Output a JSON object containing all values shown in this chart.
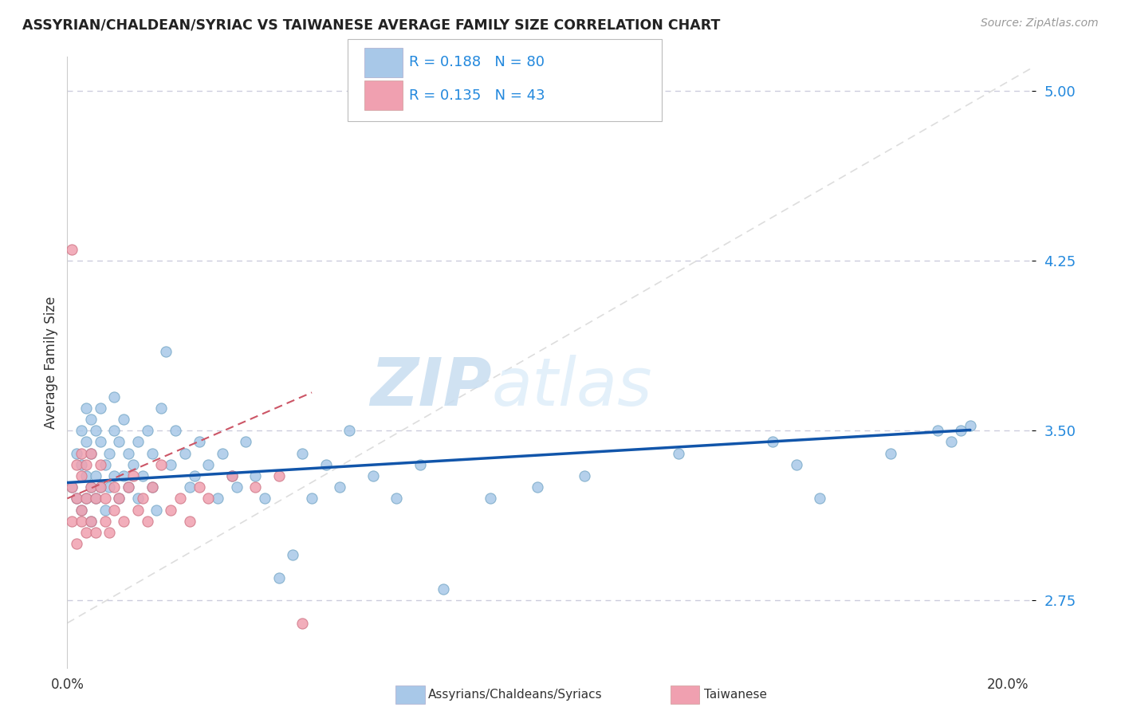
{
  "title": "ASSYRIAN/CHALDEAN/SYRIAC VS TAIWANESE AVERAGE FAMILY SIZE CORRELATION CHART",
  "source": "Source: ZipAtlas.com",
  "ylabel": "Average Family Size",
  "xlim": [
    0.0,
    0.205
  ],
  "ylim": [
    2.45,
    5.15
  ],
  "yticks": [
    2.75,
    3.5,
    4.25,
    5.0
  ],
  "xticks": [
    0.0,
    0.05,
    0.1,
    0.15,
    0.2
  ],
  "color_blue": "#a8c8e8",
  "color_blue_edge": "#7aaac8",
  "color_pink": "#f0a0b0",
  "color_pink_edge": "#d07888",
  "color_blue_text": "#2288dd",
  "color_line_blue": "#1155aa",
  "color_line_pink": "#cc5566",
  "watermark_color": "#ddeeff",
  "background_color": "#ffffff",
  "grid_color": "#ccccdd",
  "assyrians_x": [
    0.001,
    0.002,
    0.002,
    0.003,
    0.003,
    0.003,
    0.004,
    0.004,
    0.004,
    0.004,
    0.005,
    0.005,
    0.005,
    0.005,
    0.006,
    0.006,
    0.006,
    0.007,
    0.007,
    0.007,
    0.008,
    0.008,
    0.009,
    0.009,
    0.01,
    0.01,
    0.01,
    0.011,
    0.011,
    0.012,
    0.012,
    0.013,
    0.013,
    0.014,
    0.015,
    0.015,
    0.016,
    0.017,
    0.018,
    0.018,
    0.019,
    0.02,
    0.021,
    0.022,
    0.023,
    0.025,
    0.026,
    0.027,
    0.028,
    0.03,
    0.032,
    0.033,
    0.035,
    0.036,
    0.038,
    0.04,
    0.042,
    0.045,
    0.048,
    0.05,
    0.052,
    0.055,
    0.058,
    0.06,
    0.065,
    0.07,
    0.075,
    0.08,
    0.09,
    0.1,
    0.11,
    0.13,
    0.15,
    0.155,
    0.16,
    0.175,
    0.185,
    0.188,
    0.19,
    0.192
  ],
  "assyrians_y": [
    3.25,
    3.4,
    3.2,
    3.35,
    3.5,
    3.15,
    3.6,
    3.3,
    3.45,
    3.2,
    3.55,
    3.25,
    3.4,
    3.1,
    3.3,
    3.5,
    3.2,
    3.45,
    3.25,
    3.6,
    3.35,
    3.15,
    3.4,
    3.25,
    3.5,
    3.3,
    3.65,
    3.2,
    3.45,
    3.3,
    3.55,
    3.25,
    3.4,
    3.35,
    3.2,
    3.45,
    3.3,
    3.5,
    3.25,
    3.4,
    3.15,
    3.6,
    3.85,
    3.35,
    3.5,
    3.4,
    3.25,
    3.3,
    3.45,
    3.35,
    3.2,
    3.4,
    3.3,
    3.25,
    3.45,
    3.3,
    3.2,
    2.85,
    2.95,
    3.4,
    3.2,
    3.35,
    3.25,
    3.5,
    3.3,
    3.2,
    3.35,
    2.8,
    3.2,
    3.25,
    3.3,
    3.4,
    3.45,
    3.35,
    3.2,
    3.4,
    3.5,
    3.45,
    3.5,
    3.52
  ],
  "taiwanese_x": [
    0.001,
    0.001,
    0.001,
    0.002,
    0.002,
    0.002,
    0.003,
    0.003,
    0.003,
    0.003,
    0.004,
    0.004,
    0.004,
    0.005,
    0.005,
    0.005,
    0.006,
    0.006,
    0.007,
    0.007,
    0.008,
    0.008,
    0.009,
    0.01,
    0.01,
    0.011,
    0.012,
    0.013,
    0.014,
    0.015,
    0.016,
    0.017,
    0.018,
    0.02,
    0.022,
    0.024,
    0.026,
    0.028,
    0.03,
    0.035,
    0.04,
    0.045,
    0.05
  ],
  "taiwanese_y": [
    4.3,
    3.25,
    3.1,
    3.35,
    3.2,
    3.0,
    3.3,
    3.15,
    3.4,
    3.1,
    3.2,
    3.35,
    3.05,
    3.25,
    3.1,
    3.4,
    3.2,
    3.05,
    3.25,
    3.35,
    3.1,
    3.2,
    3.05,
    3.25,
    3.15,
    3.2,
    3.1,
    3.25,
    3.3,
    3.15,
    3.2,
    3.1,
    3.25,
    3.35,
    3.15,
    3.2,
    3.1,
    3.25,
    3.2,
    3.3,
    3.25,
    3.3,
    2.65
  ]
}
